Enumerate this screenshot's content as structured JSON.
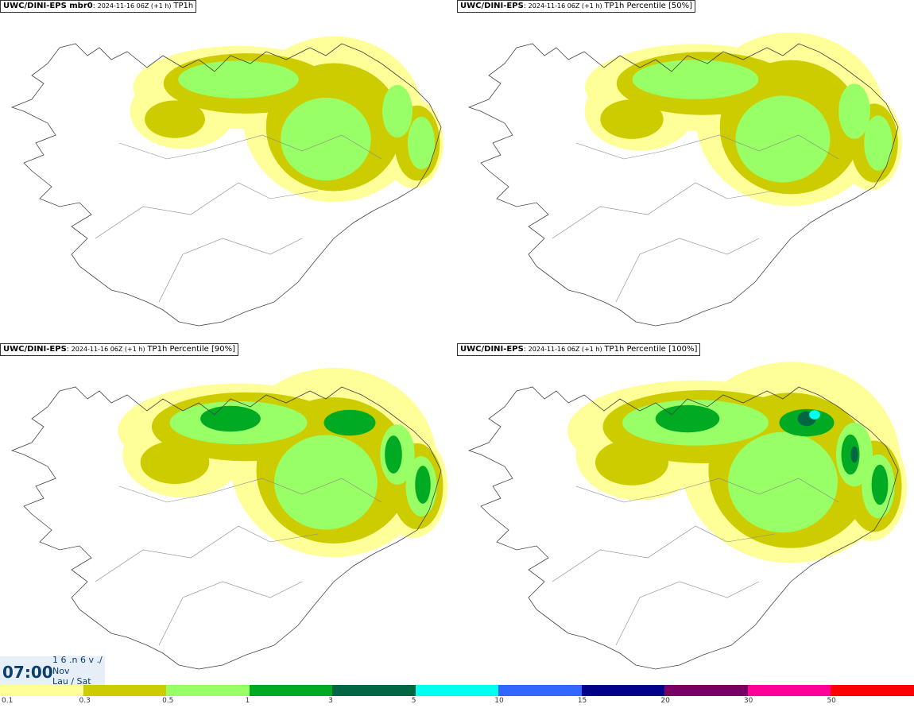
{
  "panels": [
    {
      "model": "UWC/DINI-EPS mbr0",
      "run": "2024-11-16 06Z (+1 h)",
      "field": "TP1h",
      "intensity": 0.55
    },
    {
      "model": "UWC/DINI-EPS",
      "run": "2024-11-16 06Z (+1 h)",
      "field": "TP1h Percentile [50%]",
      "intensity": 0.65
    },
    {
      "model": "UWC/DINI-EPS",
      "run": "2024-11-16 06Z (+1 h)",
      "field": "TP1h Percentile [90%]",
      "intensity": 0.85
    },
    {
      "model": "UWC/DINI-EPS",
      "run": "2024-11-16 06Z (+1 h)",
      "field": "TP1h Percentile [100%]",
      "intensity": 1.0
    }
  ],
  "clock": {
    "time": "07:00",
    "line1": "1 6 .n 6 v ./",
    "line2": "Nov",
    "line3": "Lau / Sat"
  },
  "legend": {
    "colors": [
      "#ffff99",
      "#cccc00",
      "#99ff66",
      "#00aa22",
      "#006644",
      "#00ffee",
      "#3366ff",
      "#000088",
      "#770066",
      "#ff0099",
      "#ff0000"
    ],
    "ticks": [
      "0.1",
      "0.3",
      "0.5",
      "1",
      "3",
      "5",
      "10",
      "15",
      "20",
      "30",
      "50"
    ]
  }
}
